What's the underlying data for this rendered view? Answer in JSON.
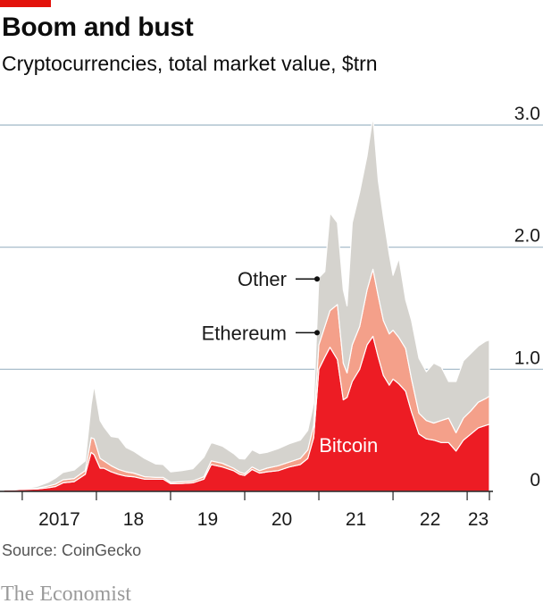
{
  "header": {
    "title": "Boom and bust",
    "subtitle": "Cryptocurrencies, total market value, $trn"
  },
  "footer": {
    "source": "Source: CoinGecko",
    "brand": "The Economist"
  },
  "colors": {
    "accent": "#e3120b",
    "bitcoin": "#ed1c24",
    "ethereum": "#f4a08a",
    "other": "#d5d3ce",
    "gridline": "#9fb6c6",
    "axis": "#222222"
  },
  "chart_data": {
    "type": "area",
    "stacked": true,
    "title": "Boom and bust",
    "subtitle": "Cryptocurrencies, total market value, $trn",
    "xlabel": "",
    "ylabel": "",
    "x": [
      2016.75,
      2016.9,
      2017.0,
      2017.2,
      2017.35,
      2017.45,
      2017.55,
      2017.7,
      2017.85,
      2017.93,
      2017.97,
      2018.05,
      2018.1,
      2018.2,
      2018.3,
      2018.4,
      2018.5,
      2018.65,
      2018.8,
      2018.9,
      2019.0,
      2019.15,
      2019.3,
      2019.45,
      2019.55,
      2019.7,
      2019.85,
      2019.93,
      2020.0,
      2020.1,
      2020.2,
      2020.3,
      2020.45,
      2020.6,
      2020.75,
      2020.85,
      2020.93,
      2021.0,
      2021.08,
      2021.15,
      2021.25,
      2021.33,
      2021.38,
      2021.45,
      2021.55,
      2021.65,
      2021.73,
      2021.8,
      2021.87,
      2021.95,
      2022.0,
      2022.08,
      2022.17,
      2022.25,
      2022.35,
      2022.45,
      2022.55,
      2022.65,
      2022.75,
      2022.85,
      2022.95,
      2023.05,
      2023.15,
      2023.25,
      2023.3
    ],
    "series": [
      {
        "name": "Bitcoin",
        "values": [
          0.012,
          0.013,
          0.016,
          0.02,
          0.03,
          0.04,
          0.07,
          0.08,
          0.14,
          0.32,
          0.3,
          0.19,
          0.19,
          0.16,
          0.14,
          0.125,
          0.12,
          0.1,
          0.1,
          0.1,
          0.063,
          0.065,
          0.07,
          0.1,
          0.22,
          0.2,
          0.17,
          0.14,
          0.13,
          0.18,
          0.15,
          0.16,
          0.17,
          0.2,
          0.22,
          0.27,
          0.44,
          1.0,
          1.1,
          1.18,
          1.08,
          0.75,
          0.77,
          0.9,
          1.0,
          1.2,
          1.27,
          1.1,
          0.95,
          0.87,
          0.92,
          0.88,
          0.82,
          0.65,
          0.47,
          0.43,
          0.42,
          0.4,
          0.4,
          0.33,
          0.42,
          0.47,
          0.52,
          0.54,
          0.55
        ]
      },
      {
        "name": "Ethereum",
        "values": [
          0.001,
          0.001,
          0.001,
          0.005,
          0.015,
          0.02,
          0.025,
          0.025,
          0.03,
          0.12,
          0.13,
          0.08,
          0.06,
          0.05,
          0.04,
          0.035,
          0.03,
          0.02,
          0.015,
          0.015,
          0.012,
          0.015,
          0.015,
          0.02,
          0.03,
          0.03,
          0.02,
          0.018,
          0.015,
          0.02,
          0.02,
          0.03,
          0.04,
          0.04,
          0.05,
          0.07,
          0.1,
          0.2,
          0.25,
          0.3,
          0.45,
          0.3,
          0.2,
          0.3,
          0.35,
          0.45,
          0.55,
          0.5,
          0.45,
          0.42,
          0.4,
          0.38,
          0.35,
          0.27,
          0.17,
          0.15,
          0.14,
          0.18,
          0.2,
          0.15,
          0.18,
          0.19,
          0.21,
          0.22,
          0.23
        ]
      },
      {
        "name": "Other",
        "values": [
          0.001,
          0.001,
          0.003,
          0.015,
          0.03,
          0.05,
          0.06,
          0.07,
          0.08,
          0.27,
          0.44,
          0.31,
          0.28,
          0.24,
          0.26,
          0.2,
          0.18,
          0.15,
          0.11,
          0.105,
          0.085,
          0.09,
          0.1,
          0.16,
          0.15,
          0.14,
          0.12,
          0.11,
          0.12,
          0.14,
          0.14,
          0.13,
          0.14,
          0.15,
          0.15,
          0.16,
          0.18,
          0.55,
          0.45,
          0.8,
          0.67,
          0.6,
          0.55,
          1.0,
          1.1,
          1.1,
          1.25,
          0.95,
          0.85,
          0.65,
          0.45,
          0.65,
          0.4,
          0.48,
          0.45,
          0.4,
          0.49,
          0.44,
          0.3,
          0.42,
          0.47,
          0.47,
          0.46,
          0.47,
          0.46
        ]
      }
    ],
    "ylim": [
      0,
      3.0
    ],
    "yticks": [
      0,
      1.0,
      2.0,
      3.0
    ],
    "ytick_labels": [
      "0",
      "1.0",
      "2.0",
      "3.0"
    ],
    "xlim": [
      2016.7,
      2023.3
    ],
    "xtick_labels": [
      {
        "x": 2017.5,
        "label": "2017"
      },
      {
        "x": 2018.5,
        "label": "18"
      },
      {
        "x": 2019.5,
        "label": "19"
      },
      {
        "x": 2020.5,
        "label": "20"
      },
      {
        "x": 2021.5,
        "label": "21"
      },
      {
        "x": 2022.5,
        "label": "22"
      },
      {
        "x": 2023.15,
        "label": "23"
      }
    ],
    "xticks": [
      2017,
      2018,
      2019,
      2020,
      2021,
      2022,
      2023,
      2023.3
    ],
    "grid": "horizontal",
    "annotations": [
      {
        "text": "Other",
        "x": 2021.0,
        "y": 1.74
      },
      {
        "text": "Ethereum",
        "x": 2021.0,
        "y": 1.3
      },
      {
        "text": "Bitcoin",
        "x": 2021.4,
        "y": 0.38
      }
    ]
  }
}
